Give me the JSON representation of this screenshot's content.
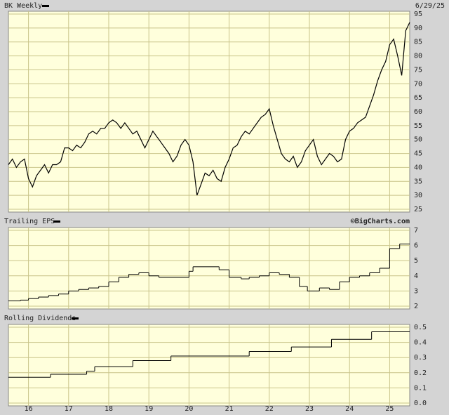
{
  "chart_data": [
    {
      "type": "line",
      "title": "BK Weekly",
      "subtitle": "6/29/25",
      "color": "#000000",
      "x": [
        2015.5,
        2015.6,
        2015.7,
        2015.8,
        2015.9,
        2016.0,
        2016.1,
        2016.2,
        2016.3,
        2016.4,
        2016.5,
        2016.6,
        2016.7,
        2016.8,
        2016.9,
        2017.0,
        2017.1,
        2017.2,
        2017.3,
        2017.4,
        2017.5,
        2017.6,
        2017.7,
        2017.8,
        2017.9,
        2018.0,
        2018.1,
        2018.2,
        2018.3,
        2018.4,
        2018.5,
        2018.6,
        2018.7,
        2018.8,
        2018.9,
        2019.0,
        2019.1,
        2019.2,
        2019.3,
        2019.4,
        2019.5,
        2019.6,
        2019.7,
        2019.8,
        2019.9,
        2020.0,
        2020.1,
        2020.2,
        2020.3,
        2020.4,
        2020.5,
        2020.6,
        2020.7,
        2020.8,
        2020.9,
        2021.0,
        2021.1,
        2021.2,
        2021.3,
        2021.4,
        2021.5,
        2021.6,
        2021.7,
        2021.8,
        2021.9,
        2022.0,
        2022.1,
        2022.2,
        2022.3,
        2022.4,
        2022.5,
        2022.6,
        2022.7,
        2022.8,
        2022.9,
        2023.0,
        2023.1,
        2023.2,
        2023.3,
        2023.4,
        2023.5,
        2023.6,
        2023.7,
        2023.8,
        2023.9,
        2024.0,
        2024.1,
        2024.2,
        2024.3,
        2024.4,
        2024.5,
        2024.6,
        2024.7,
        2024.8,
        2024.9,
        2025.0,
        2025.1,
        2025.2,
        2025.3,
        2025.4,
        2025.5
      ],
      "values": [
        41,
        43,
        40,
        42,
        43,
        36,
        33,
        37,
        39,
        41,
        38,
        41,
        41,
        42,
        47,
        47,
        46,
        48,
        47,
        49,
        52,
        53,
        52,
        54,
        54,
        56,
        57,
        56,
        54,
        56,
        54,
        52,
        53,
        50,
        47,
        50,
        53,
        51,
        49,
        47,
        45,
        42,
        44,
        48,
        50,
        48,
        42,
        30,
        34,
        38,
        37,
        39,
        36,
        35,
        40,
        43,
        47,
        48,
        51,
        53,
        52,
        54,
        56,
        58,
        59,
        61,
        55,
        50,
        45,
        43,
        42,
        44,
        40,
        42,
        46,
        48,
        50,
        44,
        41,
        43,
        45,
        44,
        42,
        43,
        50,
        53,
        54,
        56,
        57,
        58,
        62,
        66,
        71,
        75,
        78,
        84,
        86,
        80,
        73,
        89,
        92
      ],
      "xlim": [
        2015.5,
        2025.5
      ],
      "ylim": [
        25,
        95
      ],
      "yticks": [
        25,
        30,
        35,
        40,
        45,
        50,
        55,
        60,
        65,
        70,
        75,
        80,
        85,
        90,
        95
      ],
      "grid": true
    },
    {
      "type": "step",
      "title": "Trailing EPS",
      "source": "©BigCharts.com",
      "color": "#000000",
      "x": [
        2015.5,
        2015.8,
        2016.0,
        2016.25,
        2016.5,
        2016.75,
        2017.0,
        2017.25,
        2017.5,
        2017.75,
        2018.0,
        2018.25,
        2018.5,
        2018.75,
        2019.0,
        2019.25,
        2020.0,
        2020.1,
        2020.75,
        2021.0,
        2021.3,
        2021.5,
        2021.75,
        2022.0,
        2022.25,
        2022.5,
        2022.75,
        2022.95,
        2023.25,
        2023.5,
        2023.75,
        2024.0,
        2024.25,
        2024.5,
        2024.75,
        2025.0,
        2025.25
      ],
      "values": [
        2.35,
        2.4,
        2.5,
        2.6,
        2.7,
        2.8,
        3.0,
        3.1,
        3.2,
        3.3,
        3.6,
        3.9,
        4.1,
        4.2,
        4.0,
        3.9,
        4.3,
        4.6,
        4.4,
        3.9,
        3.8,
        3.9,
        4.0,
        4.2,
        4.1,
        3.9,
        3.3,
        3.0,
        3.2,
        3.1,
        3.6,
        3.9,
        4.0,
        4.2,
        4.5,
        5.8,
        6.1
      ],
      "xlim": [
        2015.5,
        2025.5
      ],
      "ylim": [
        2,
        7
      ],
      "yticks": [
        2,
        3,
        4,
        5,
        6,
        7
      ],
      "grid": true
    },
    {
      "type": "step",
      "title": "Rolling Dividends",
      "color": "#000000",
      "x": [
        2015.5,
        2016.55,
        2017.45,
        2017.65,
        2018.6,
        2019.55,
        2021.5,
        2022.55,
        2023.55,
        2024.55
      ],
      "values": [
        0.17,
        0.19,
        0.21,
        0.24,
        0.28,
        0.31,
        0.34,
        0.37,
        0.42,
        0.47
      ],
      "xlim": [
        2015.5,
        2025.5
      ],
      "ylim": [
        0,
        0.5
      ],
      "yticks": [
        {
          "value": 0,
          "label": "0.0"
        },
        0.1,
        0.2,
        0.3,
        0.4,
        0.5
      ],
      "xticks": [
        {
          "value": 2016,
          "label": "16"
        },
        {
          "value": 2017,
          "label": "17"
        },
        {
          "value": 2018,
          "label": "18"
        },
        {
          "value": 2019,
          "label": "19"
        },
        {
          "value": 2020,
          "label": "20"
        },
        {
          "value": 2021,
          "label": "21"
        },
        {
          "value": 2022,
          "label": "22"
        },
        {
          "value": 2023,
          "label": "23"
        },
        {
          "value": 2024,
          "label": "24"
        },
        {
          "value": 2025,
          "label": "25"
        }
      ],
      "grid": true
    }
  ]
}
